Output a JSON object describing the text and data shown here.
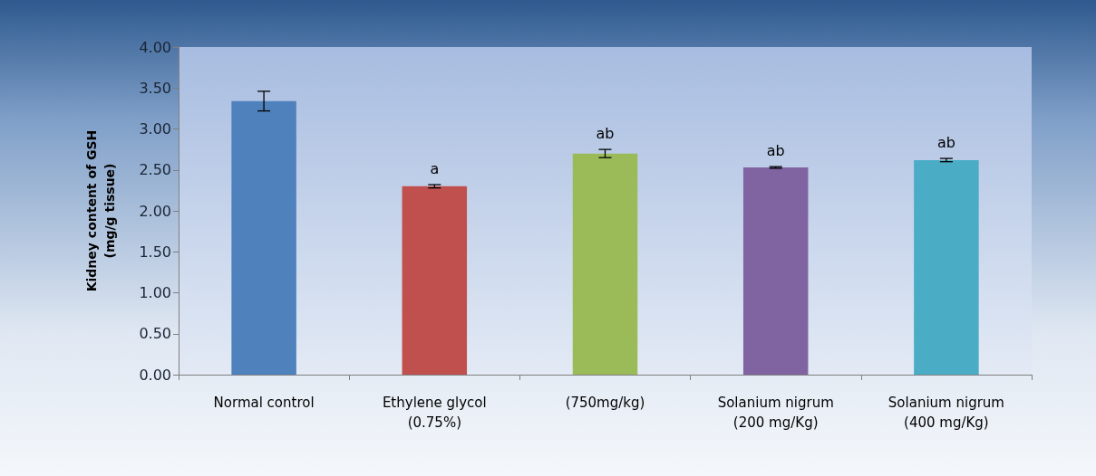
{
  "chart_data": {
    "type": "bar",
    "ylabel": "Kidney content of GSH\n(mg/g tissue)",
    "categories": [
      "Normal control",
      "Ethylene glycol\n(0.75%)",
      "(750mg/kg)",
      "Solanium nigrum\n(200 mg/Kg)",
      "Solanium nigrum\n(400 mg/Kg)"
    ],
    "values": [
      3.34,
      2.3,
      2.7,
      2.53,
      2.62
    ],
    "colors": [
      "#4f81bd",
      "#c0504d",
      "#9bbb59",
      "#8064a2",
      "#4bacc6"
    ],
    "errors": [
      0.12,
      0.02,
      0.05,
      0.01,
      0.02
    ],
    "ylim": [
      0,
      4
    ],
    "yticks": [
      {
        "value": 0,
        "label": "0.00"
      },
      {
        "value": 0.5,
        "label": "0.50"
      },
      {
        "value": 1,
        "label": "1.00"
      },
      {
        "value": 1.5,
        "label": "1.50"
      },
      {
        "value": 2,
        "label": "2.00"
      },
      {
        "value": 2.5,
        "label": "2.50"
      },
      {
        "value": 3,
        "label": "3.00"
      },
      {
        "value": 3.5,
        "label": "3.50"
      },
      {
        "value": 4,
        "label": "4.00"
      }
    ],
    "grid": false,
    "annotations": [
      {
        "text": "a",
        "x": "Ethylene glycol\n(0.75%)",
        "y": 2.32
      },
      {
        "text": "ab",
        "x": "(750mg/kg)",
        "y": 2.75
      },
      {
        "text": "ab",
        "x": "Solanium nigrum\n(200 mg/Kg)",
        "y": 2.54
      },
      {
        "text": "ab",
        "x": "Solanium nigrum\n(400 mg/Kg)",
        "y": 2.64
      }
    ]
  }
}
